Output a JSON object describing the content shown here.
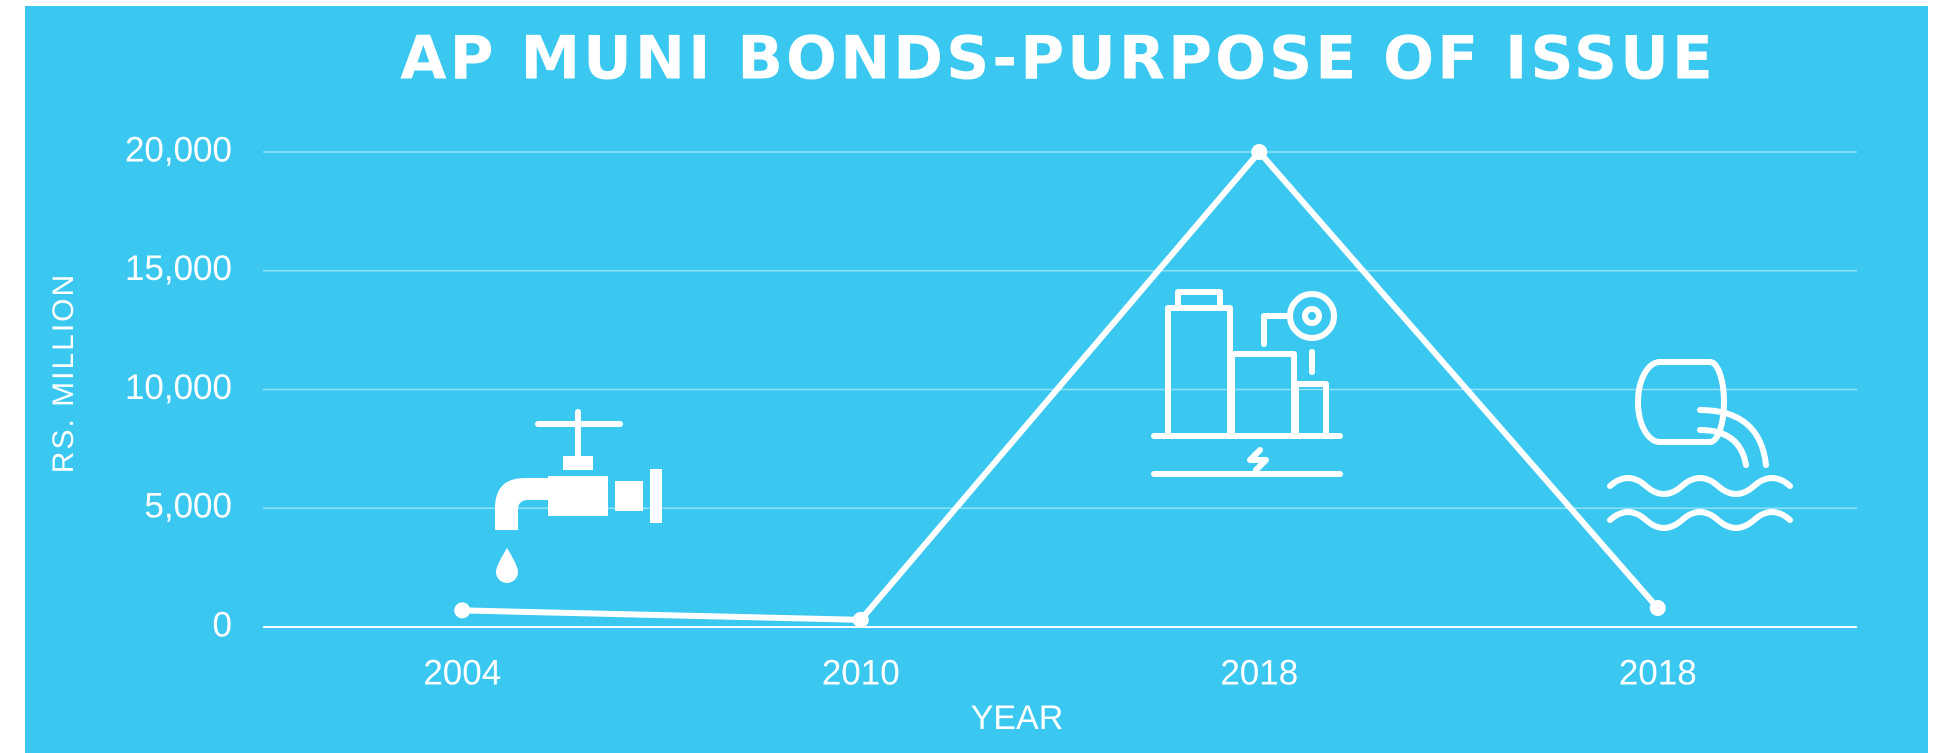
{
  "chart_data": {
    "type": "line",
    "title": "AP MUNI BONDS-PURPOSE OF ISSUE",
    "x_label": "YEAR",
    "y_label": "RS. MILLION",
    "categories": [
      "2004",
      "2010",
      "2018",
      "2018"
    ],
    "values": [
      700,
      300,
      20000,
      800
    ],
    "color": "#ffffff",
    "ylim": [
      0,
      20000
    ],
    "yticks": [
      0,
      {
        "value": 5000,
        "label": "5,000"
      },
      {
        "value": 10000,
        "label": "10,000"
      },
      {
        "value": 15000,
        "label": "15,000"
      },
      {
        "value": 20000,
        "label": "20,000"
      }
    ],
    "grid": true
  }
}
